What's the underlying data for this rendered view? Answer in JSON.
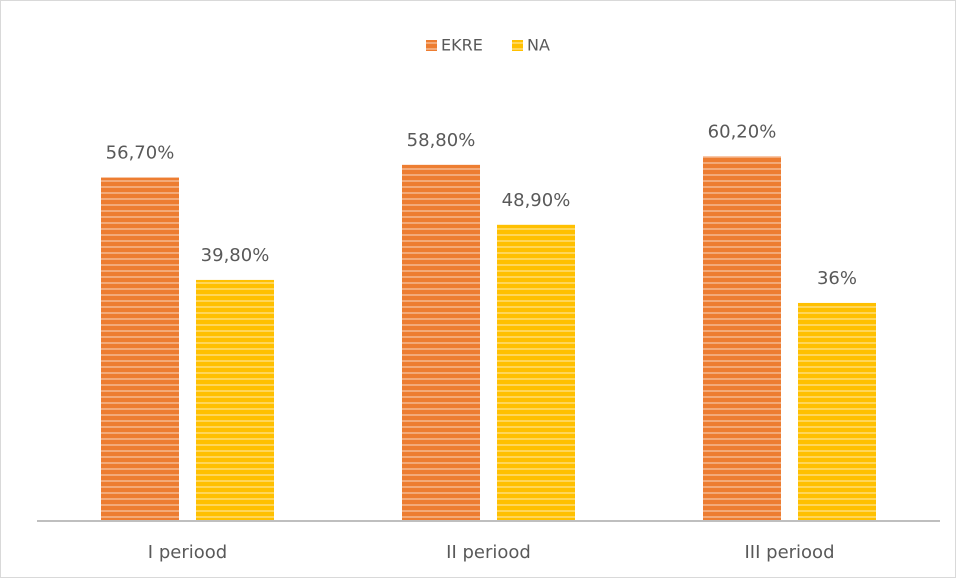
{
  "chart_data": {
    "type": "bar",
    "categories": [
      "I periood",
      "II periood",
      "III periood"
    ],
    "series": [
      {
        "name": "EKRE",
        "color": "#ed7d31",
        "values": [
          56.7,
          58.8,
          60.2
        ],
        "value_labels": [
          "56,70%",
          "58,80%",
          "60,20%"
        ]
      },
      {
        "name": "NA",
        "color": "#ffc000",
        "values": [
          39.8,
          48.9,
          36
        ],
        "value_labels": [
          "39,80%",
          "48,90%",
          "36%"
        ]
      }
    ],
    "ylim": [
      0,
      70
    ],
    "legend": "top"
  }
}
